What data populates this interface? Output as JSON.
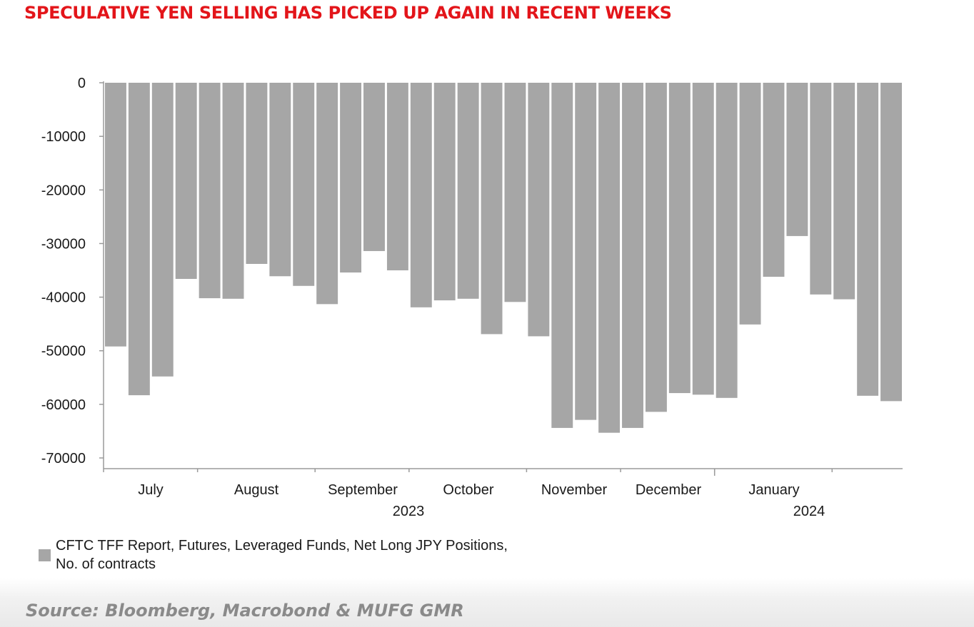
{
  "headline": "SPECULATIVE YEN SELLING HAS PICKED UP AGAIN IN RECENT WEEKS",
  "source": "Source: Bloomberg, Macrobond & MUFG GMR",
  "colors": {
    "headline": "#e3151a",
    "bars": "#a6a6a6",
    "source": "#8a8a8a"
  },
  "chart_data": {
    "type": "bar",
    "title": "",
    "xlabel": "",
    "ylabel": "",
    "ylim": [
      -70000,
      0
    ],
    "y_ticks": [
      0,
      -10000,
      -20000,
      -30000,
      -40000,
      -50000,
      -60000,
      -70000
    ],
    "grid": false,
    "x_month_labels": [
      "July",
      "August",
      "September",
      "October",
      "November",
      "December",
      "January"
    ],
    "x_year_labels": [
      "2023",
      "2024"
    ],
    "legend": {
      "position": "bottom-left",
      "entries": [
        "CFTC TFF Report, Futures, Leveraged Funds, Net Long JPY Positions, No. of contracts"
      ]
    },
    "series": [
      {
        "name": "CFTC TFF Report, Futures, Leveraged Funds, Net Long JPY Positions, No. of contracts",
        "values": [
          -49200,
          -58300,
          -54800,
          -36600,
          -40200,
          -40300,
          -33800,
          -36100,
          -37900,
          -41300,
          -35400,
          -31400,
          -35000,
          -41900,
          -40600,
          -40300,
          -46900,
          -40900,
          -47300,
          -64400,
          -62900,
          -65300,
          -64400,
          -61400,
          -57900,
          -58200,
          -58800,
          -45100,
          -36200,
          -28600,
          -39500,
          -40400,
          -58400,
          -59400
        ]
      }
    ]
  }
}
